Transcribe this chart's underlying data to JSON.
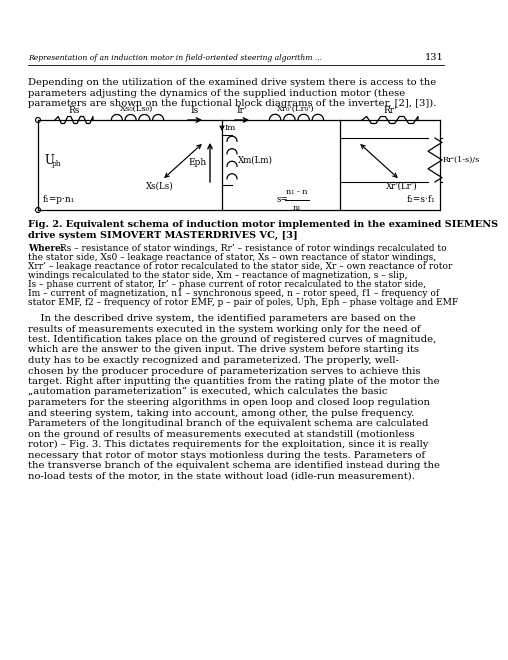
{
  "bg_color": "#ffffff",
  "header_italic": "Representation of an induction motor in field-oriented steering algorithm ...",
  "header_page": "131",
  "intro_line1": "Depending on the utilization of the examined drive system there is access to the",
  "intro_line2": "parameters adjusting the dynamics of the supplied induction motor (these",
  "intro_line3": "parameters are shown on the functional block diagrams of the inverter, [2], [3]).",
  "fig_cap_line1": "Fig. 2. Equivalent schema of induction motor implemented in the examined SIEMENS",
  "fig_cap_line2": "drive system SIMOVERT MASTERDRIVES VC, [3]",
  "where_bold": "Where:",
  "where_rest1": " Rs – resistance of stator windings, Rr’ – resistance of rotor windings recalculated to",
  "where_line2": "the stator side, Xs0 – leakage reactance of stator, Xs – own reactance of stator windings,",
  "where_line3": "Xrr’ – leakage reactance of rotor recalculated to the stator side, Xr – own reactance of rotor",
  "where_line4": "windings recalculated to the stator side, Xm – reactance of magnetization, s – slip,",
  "where_line5": "Is – phase current of stator, Ir’ – phase current of rotor recalculated to the stator side,",
  "where_line6": "Im – current of magnetization, n1 – synchronous speed, n – rotor speed, f1 – frequency of",
  "where_line7": "stator EMF, f2 – frequency of rotor EMF, p – pair of poles, Uph, Eph – phase voltage and EMF",
  "body_line1": "    In the described drive system, the identified parameters are based on the",
  "body_line2": "results of measurements executed in the system working only for the need of",
  "body_line3": "test. Identification takes place on the ground of registered curves of magnitude,",
  "body_line4": "which are the answer to the given input. The drive system before starting its",
  "body_line5": "duty has to be exactly recognized and parameterized. The properly, well-",
  "body_line6": "chosen by the producer procedure of parameterization serves to achieve this",
  "body_line7": "target. Right after inputting the quantities from the rating plate of the motor the",
  "body_line8": "„automation parameterization” is executed, which calculates the basic",
  "body_line9": "parameters for the steering algorithms in open loop and closed loop regulation",
  "body_line10": "and steering system, taking into account, among other, the pulse frequency.",
  "body_line11": "Parameters of the longitudinal branch of the equivalent schema are calculated",
  "body_line12": "on the ground of results of measurements executed at standstill (motionless",
  "body_line13": "rotor) – Fig. 3. This dictates requirements for the exploitation, since it is really",
  "body_line14": "necessary that rotor of motor stays motionless during the tests. Parameters of",
  "body_line15": "the transverse branch of the equivalent schema are identified instead during the",
  "body_line16": "no-load tests of the motor, in the state without load (idle-run measurement)."
}
